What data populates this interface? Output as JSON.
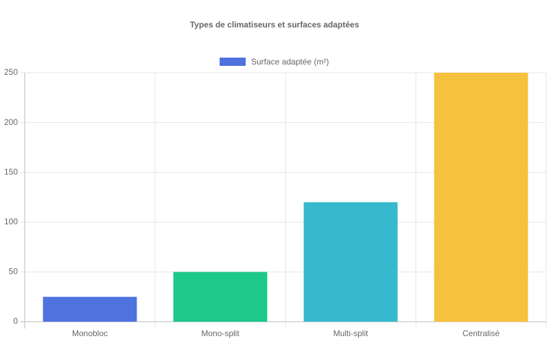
{
  "chart_data": {
    "type": "bar",
    "title": "Types de climatiseurs et surfaces adaptées",
    "categories": [
      "Monobloc",
      "Mono-split",
      "Multi-split",
      "Centralisé"
    ],
    "series": [
      {
        "name": "Surface adaptée (m²)",
        "colors": [
          "#4e73df",
          "#1cc88a",
          "#36b9cc",
          "#f6c23e"
        ],
        "values": [
          25,
          50,
          120,
          250
        ]
      }
    ],
    "ylim": [
      0,
      250
    ],
    "yticks": [
      0,
      50,
      100,
      150,
      200,
      250
    ],
    "grid": true,
    "legend": "top"
  }
}
